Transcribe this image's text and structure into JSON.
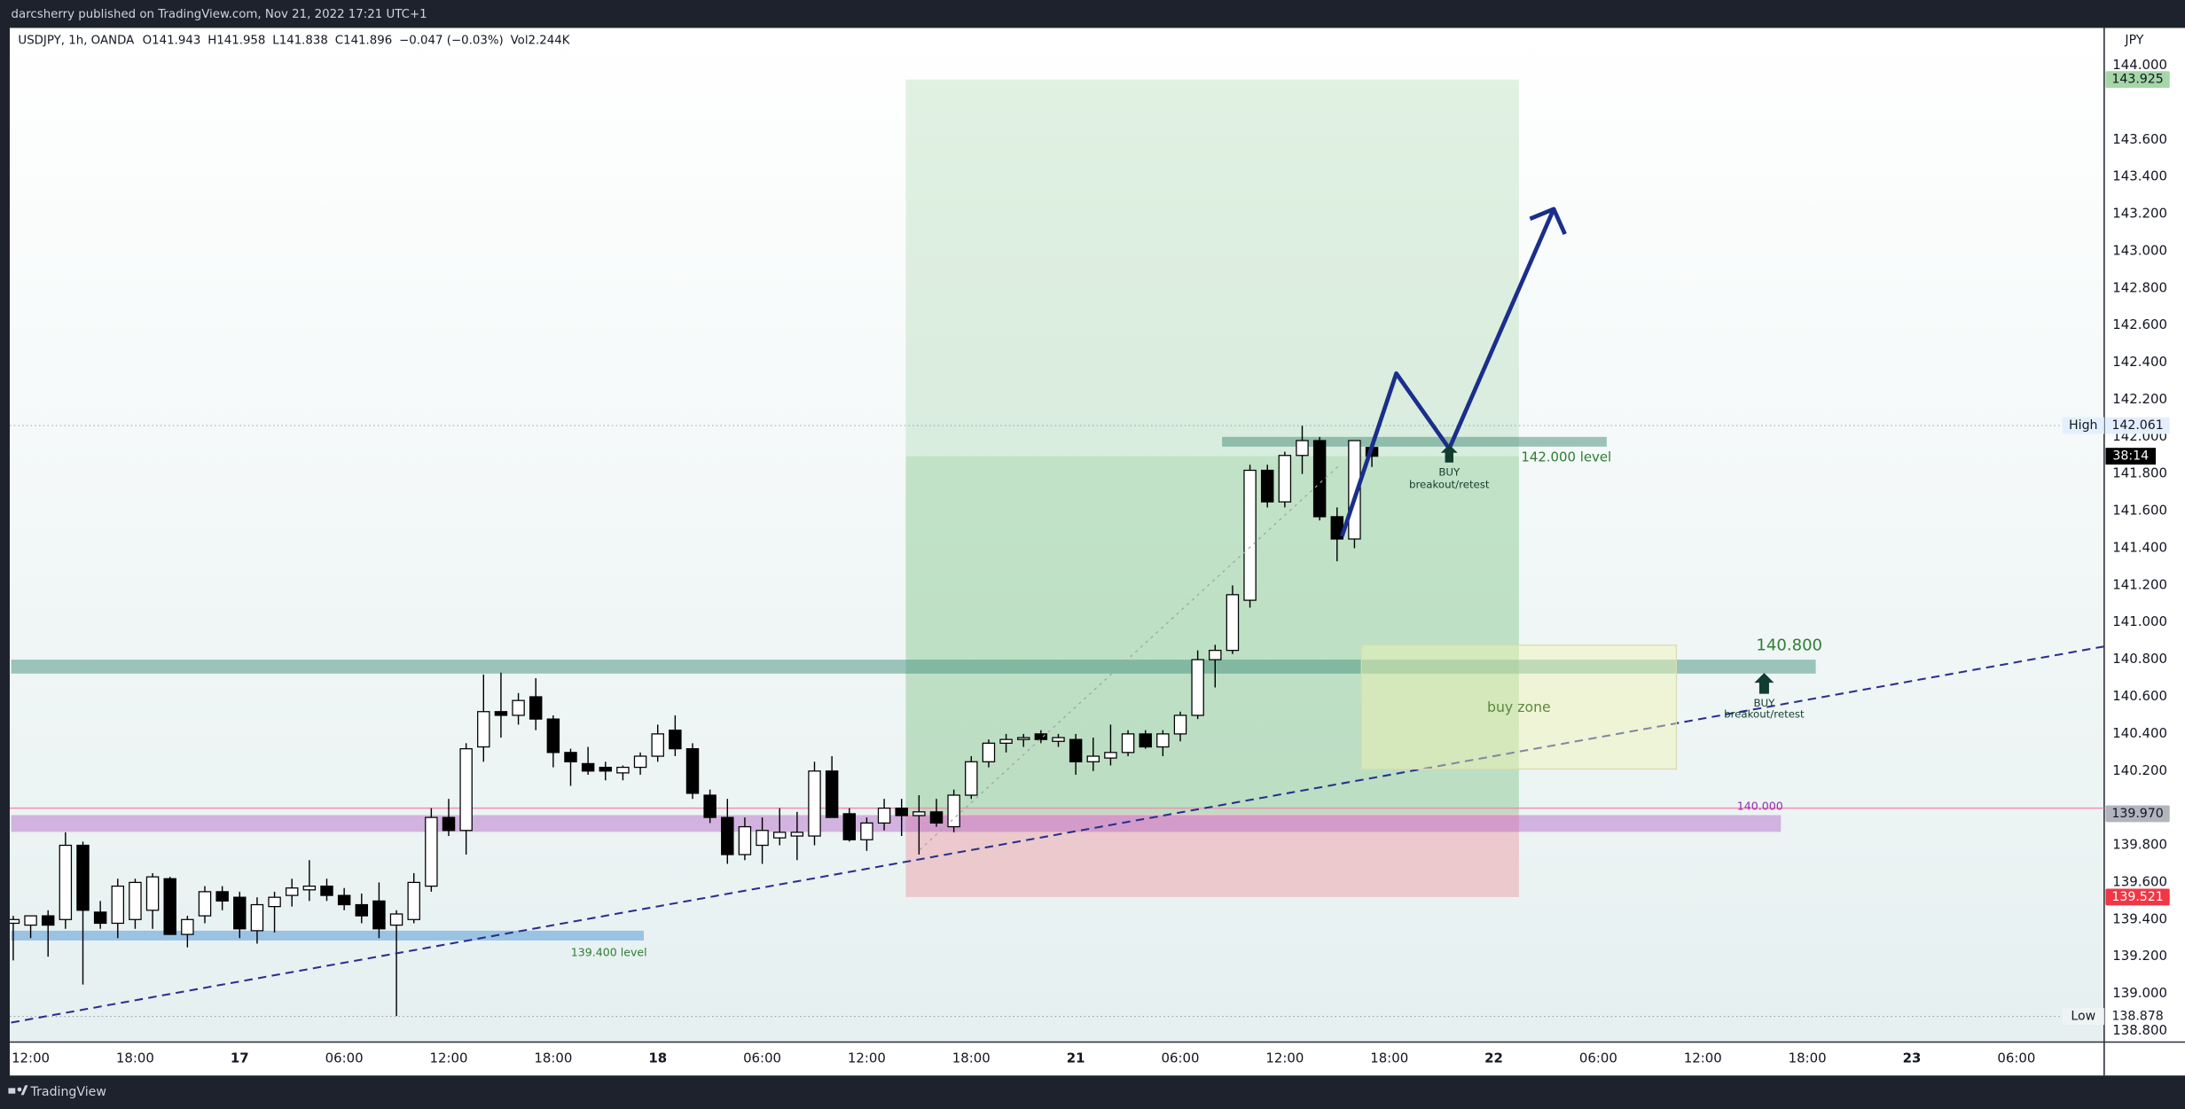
{
  "header": {
    "publisher": "darcsherry published on TradingView.com, Nov 21, 2022 17:21 UTC+1"
  },
  "footer": {
    "brand": "TradingView"
  },
  "chart_data": {
    "type": "candlestick",
    "title": "USDJPY, 1h, OANDA",
    "legend_values": [
      "O141.943",
      "H141.958",
      "L141.838",
      "C141.896",
      "−0.047 (−0.03%)",
      "Vol2.244K"
    ],
    "y_axis_unit": "JPY",
    "up_color": "#ffffff",
    "down_color": "#000000",
    "categories": [
      null,
      "12:00",
      null,
      null,
      null,
      null,
      null,
      "18:00",
      null,
      null,
      null,
      null,
      null,
      "17",
      null,
      null,
      null,
      null,
      null,
      "06:00",
      null,
      null,
      null,
      null,
      null,
      "12:00",
      null,
      null,
      null,
      null,
      null,
      "18:00",
      null,
      null,
      null,
      null,
      null,
      "18",
      null,
      null,
      null,
      null,
      null,
      "06:00",
      null,
      null,
      null,
      null,
      null,
      "12:00",
      null,
      null,
      null,
      null,
      null,
      "18:00",
      null,
      null,
      null,
      null,
      null,
      "21",
      null,
      null,
      null,
      null,
      null,
      "06:00",
      null,
      null,
      null,
      null,
      null,
      "12:00",
      null,
      null,
      null,
      null,
      null,
      "18:00",
      null,
      null,
      null,
      null,
      null,
      "22",
      null,
      null,
      null,
      null,
      null,
      "06:00",
      null,
      null,
      null,
      null,
      null,
      "12:00",
      null,
      null,
      null,
      null,
      null,
      "18:00",
      null,
      null,
      null,
      null,
      null,
      "23",
      null,
      null,
      null,
      null,
      null,
      "06:00",
      null,
      null,
      null,
      null
    ],
    "open": [
      139.38,
      139.37,
      139.42,
      139.4,
      139.8,
      139.44,
      139.38,
      139.4,
      139.45,
      139.62,
      139.32,
      139.42,
      139.55,
      139.52,
      139.34,
      139.47,
      139.53,
      139.56,
      139.58,
      139.53,
      139.48,
      139.5,
      139.37,
      139.4,
      139.58,
      139.95,
      139.88,
      140.33,
      140.52,
      140.5,
      140.6,
      140.48,
      140.3,
      140.24,
      140.22,
      140.19,
      140.22,
      140.28,
      140.42,
      140.32,
      140.07,
      139.95,
      139.75,
      139.8,
      139.84,
      139.85,
      139.85,
      140.2,
      139.97,
      139.83,
      139.92,
      140.0,
      139.96,
      139.98,
      139.9,
      140.07,
      140.25,
      140.35,
      140.37,
      140.4,
      140.36,
      140.37,
      140.25,
      140.27,
      140.3,
      140.4,
      140.33,
      140.4,
      140.5,
      140.8,
      140.85,
      141.12,
      141.82,
      141.65,
      141.9,
      141.98,
      141.57,
      141.45,
      141.943,
      null,
      null,
      null,
      null,
      null,
      null,
      null,
      null,
      null,
      null,
      null,
      null,
      null,
      null,
      null,
      null,
      null,
      null,
      null,
      null,
      null,
      null,
      null,
      null,
      null,
      null,
      null,
      null,
      null,
      null,
      null,
      null,
      null,
      null,
      null,
      null,
      null,
      null,
      null,
      null,
      null
    ],
    "high": [
      139.42,
      139.42,
      139.45,
      139.87,
      139.82,
      139.5,
      139.62,
      139.62,
      139.65,
      139.63,
      139.42,
      139.58,
      139.58,
      139.55,
      139.52,
      139.55,
      139.62,
      139.72,
      139.62,
      139.57,
      139.54,
      139.6,
      139.45,
      139.65,
      140.0,
      140.05,
      140.35,
      140.72,
      140.73,
      140.62,
      140.7,
      140.5,
      140.32,
      140.33,
      140.25,
      140.23,
      140.3,
      140.45,
      140.5,
      140.35,
      140.1,
      140.05,
      139.95,
      139.95,
      140.0,
      139.98,
      140.25,
      140.28,
      140.0,
      139.95,
      140.05,
      140.05,
      140.07,
      140.05,
      140.1,
      140.28,
      140.37,
      140.4,
      140.4,
      140.42,
      140.4,
      140.4,
      140.38,
      140.45,
      140.42,
      140.42,
      140.42,
      140.52,
      140.85,
      140.88,
      141.2,
      141.85,
      141.85,
      141.92,
      142.06,
      142.0,
      141.62,
      141.98,
      141.958,
      null,
      null,
      null,
      null,
      null,
      null,
      null,
      null,
      null,
      null,
      null,
      null,
      null,
      null,
      null,
      null,
      null,
      null,
      null,
      null,
      null,
      null,
      null,
      null,
      null,
      null,
      null,
      null,
      null,
      null,
      null,
      null,
      null,
      null,
      null,
      null,
      null,
      null,
      null,
      null,
      null
    ],
    "low": [
      139.18,
      139.3,
      139.2,
      139.35,
      139.05,
      139.35,
      139.3,
      139.35,
      139.35,
      139.32,
      139.25,
      139.38,
      139.45,
      139.3,
      139.27,
      139.33,
      139.47,
      139.5,
      139.5,
      139.45,
      139.38,
      139.3,
      138.88,
      139.38,
      139.55,
      139.85,
      139.75,
      140.25,
      140.38,
      140.45,
      140.42,
      140.22,
      140.12,
      140.18,
      140.15,
      140.15,
      140.18,
      140.25,
      140.28,
      140.05,
      139.92,
      139.7,
      139.72,
      139.7,
      139.8,
      139.72,
      139.8,
      139.95,
      139.82,
      139.77,
      139.88,
      139.85,
      139.75,
      139.9,
      139.87,
      140.05,
      140.22,
      140.3,
      140.33,
      140.35,
      140.33,
      140.18,
      140.2,
      140.23,
      140.28,
      140.32,
      140.28,
      140.36,
      140.48,
      140.65,
      140.83,
      141.08,
      141.62,
      141.62,
      141.8,
      141.55,
      141.33,
      141.4,
      141.838,
      null,
      null,
      null,
      null,
      null,
      null,
      null,
      null,
      null,
      null,
      null,
      null,
      null,
      null,
      null,
      null,
      null,
      null,
      null,
      null,
      null,
      null,
      null,
      null,
      null,
      null,
      null,
      null,
      null,
      null,
      null,
      null,
      null,
      null,
      null,
      null,
      null,
      null,
      null,
      null,
      null
    ],
    "close": [
      139.4,
      139.42,
      139.37,
      139.8,
      139.45,
      139.38,
      139.58,
      139.6,
      139.63,
      139.32,
      139.4,
      139.55,
      139.5,
      139.35,
      139.48,
      139.52,
      139.57,
      139.58,
      139.53,
      139.48,
      139.42,
      139.35,
      139.43,
      139.6,
      139.95,
      139.88,
      140.32,
      140.52,
      140.5,
      140.58,
      140.48,
      140.3,
      140.25,
      140.2,
      140.2,
      140.22,
      140.28,
      140.4,
      140.32,
      140.08,
      139.95,
      139.75,
      139.9,
      139.88,
      139.87,
      139.87,
      140.2,
      139.95,
      139.83,
      139.92,
      140.0,
      139.96,
      139.98,
      139.92,
      140.07,
      140.25,
      140.35,
      140.37,
      140.38,
      140.37,
      140.38,
      140.25,
      140.28,
      140.3,
      140.4,
      140.33,
      140.4,
      140.5,
      140.8,
      140.85,
      141.15,
      141.82,
      141.65,
      141.9,
      141.98,
      141.57,
      141.45,
      141.98,
      141.896,
      null,
      null,
      null,
      null,
      null,
      null,
      null,
      null,
      null,
      null,
      null,
      null,
      null,
      null,
      null,
      null,
      null,
      null,
      null,
      null,
      null,
      null,
      null,
      null,
      null,
      null,
      null,
      null,
      null,
      null,
      null,
      null,
      null,
      null,
      null,
      null,
      null,
      null,
      null,
      null,
      null
    ],
    "ylim": [
      138.74,
      144.203
    ],
    "yticks": [
      {
        "value": 144,
        "label": "144.000"
      },
      {
        "value": 143.6,
        "label": "143.600"
      },
      {
        "value": 143.4,
        "label": "143.400"
      },
      {
        "value": 143.2,
        "label": "143.200"
      },
      {
        "value": 143,
        "label": "143.000"
      },
      {
        "value": 142.8,
        "label": "142.800"
      },
      {
        "value": 142.6,
        "label": "142.600"
      },
      {
        "value": 142.4,
        "label": "142.400"
      },
      {
        "value": 142.2,
        "label": "142.200"
      },
      {
        "value": 142,
        "label": "142.000"
      },
      {
        "value": 141.8,
        "label": "141.800"
      },
      {
        "value": 141.6,
        "label": "141.600"
      },
      {
        "value": 141.4,
        "label": "141.400"
      },
      {
        "value": 141.2,
        "label": "141.200"
      },
      {
        "value": 141,
        "label": "141.000"
      },
      {
        "value": 140.8,
        "label": "140.800"
      },
      {
        "value": 140.6,
        "label": "140.600"
      },
      {
        "value": 140.4,
        "label": "140.400"
      },
      {
        "value": 140.2,
        "label": "140.200"
      },
      {
        "value": 139.8,
        "label": "139.800"
      },
      {
        "value": 139.6,
        "label": "139.600"
      },
      {
        "value": 139.4,
        "label": "139.400"
      },
      {
        "value": 139.2,
        "label": "139.200"
      },
      {
        "value": 139,
        "label": "139.000"
      },
      {
        "value": 138.8,
        "label": "138.800"
      }
    ],
    "position": {
      "target": {
        "value": 143.925,
        "label": "143.925"
      },
      "entry": {
        "value": 139.97,
        "label": "139.970"
      },
      "stop": {
        "value": 139.521,
        "label": "139.521"
      }
    },
    "high_marker": {
      "name": "High",
      "value": 142.061,
      "label": "142.061"
    },
    "low_marker": {
      "name": "Low",
      "value": 138.878,
      "label": "138.878"
    },
    "countdown": "38:14",
    "zones": [
      {
        "value": 142,
        "label": "142.000 level"
      },
      {
        "value": 140.8,
        "label": "140.800"
      },
      {
        "value": 140,
        "label": "140.000"
      },
      {
        "value": 139.4,
        "label": "139.400 level"
      }
    ],
    "buy_zone_label": "buy zone",
    "buy_markers": [
      {
        "label": "BUY",
        "note": "breakout/retest"
      },
      {
        "label": "BUY",
        "note": "breakout/retest"
      }
    ]
  }
}
